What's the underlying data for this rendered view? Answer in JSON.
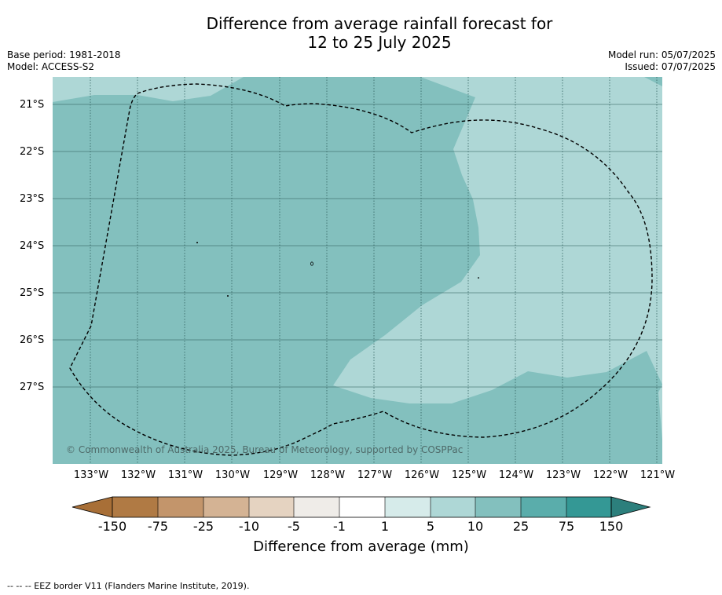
{
  "title": {
    "line1": "Difference from average rainfall forecast for",
    "line2": "12 to 25 July 2025"
  },
  "meta_left": {
    "base_period": "Base period: 1981-2018",
    "model": "Model: ACCESS-S2"
  },
  "meta_right": {
    "model_run": "Model run: 05/07/2025",
    "issued": "Issued: 07/07/2025"
  },
  "latitude_labels": [
    "21°S",
    "22°S",
    "23°S",
    "24°S",
    "25°S",
    "26°S",
    "27°S"
  ],
  "longitude_labels": [
    "133°W",
    "132°W",
    "131°W",
    "130°W",
    "129°W",
    "128°W",
    "127°W",
    "126°W",
    "125°W",
    "124°W",
    "123°W",
    "122°W",
    "121°W"
  ],
  "copyright": "© Commonwealth of Australia 2025, Bureau of Meteorology, supported by COSPPac",
  "colorbar": {
    "title": "Difference from average (mm)",
    "ticks": [
      "-150",
      "-75",
      "-25",
      "-10",
      "-5",
      "-1",
      "1",
      "5",
      "10",
      "25",
      "75",
      "150"
    ],
    "colors": [
      "#a86f37",
      "#b07a44",
      "#c3956b",
      "#d4b394",
      "#e5d3c1",
      "#efece8",
      "#ffffff",
      "#d6ebea",
      "#aed7d6",
      "#83c0be",
      "#5aadab",
      "#349895",
      "#2c7f7c"
    ]
  },
  "map_colors": {
    "class_10_25": "#83c0be",
    "class_5_10": "#aed7d6",
    "eez_border": "#000000",
    "gridline": "#2f5f5d"
  },
  "footnote": "--  --  -- EEZ border V11 (Flanders Marine Institute, 2019)."
}
